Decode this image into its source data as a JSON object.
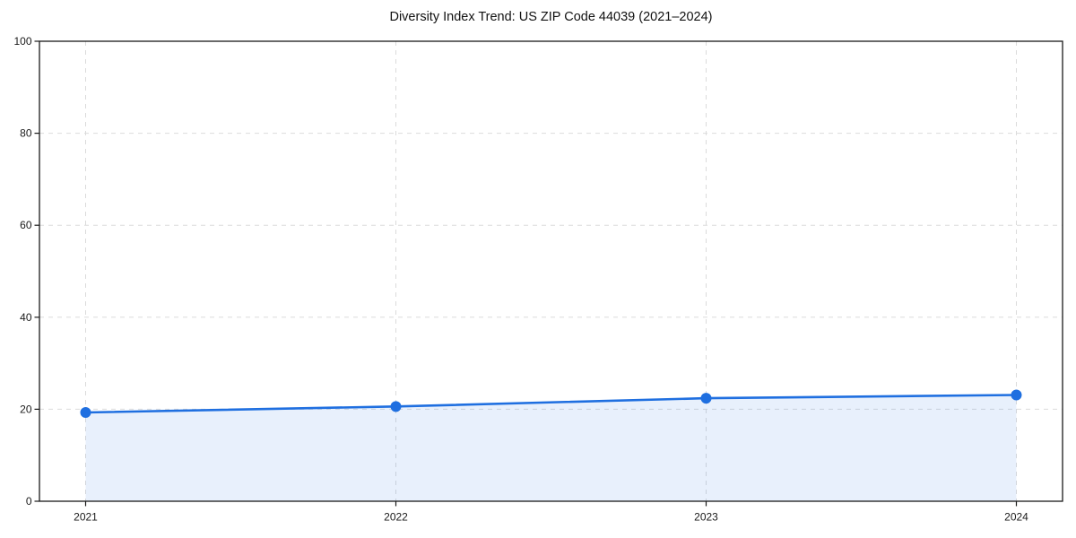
{
  "chart_data": {
    "type": "line",
    "title": "Diversity Index Trend: US ZIP Code 44039 (2021–2024)",
    "x": [
      2021,
      2022,
      2023,
      2024
    ],
    "series": [
      {
        "name": "Diversity Index",
        "values": [
          19.3,
          20.6,
          22.4,
          23.1
        ]
      }
    ],
    "xlabel": "",
    "ylabel": "",
    "ylim": [
      0,
      100
    ],
    "yticks": [
      0,
      20,
      40,
      60,
      80,
      100
    ],
    "xtick_labels": [
      "2021",
      "2022",
      "2023",
      "2024"
    ],
    "grid": "dashed, horizontal and vertical",
    "legend_position": "none",
    "marker": "circle",
    "area_fill": true,
    "colors": {
      "line": "#1f6fe0",
      "fill": "#1f6fe0",
      "fill_opacity": "0.10",
      "grid": "#dbdbdb",
      "spine": "#1a1a1a",
      "tick_text": "#1a1a1a",
      "background": "#ffffff"
    }
  }
}
